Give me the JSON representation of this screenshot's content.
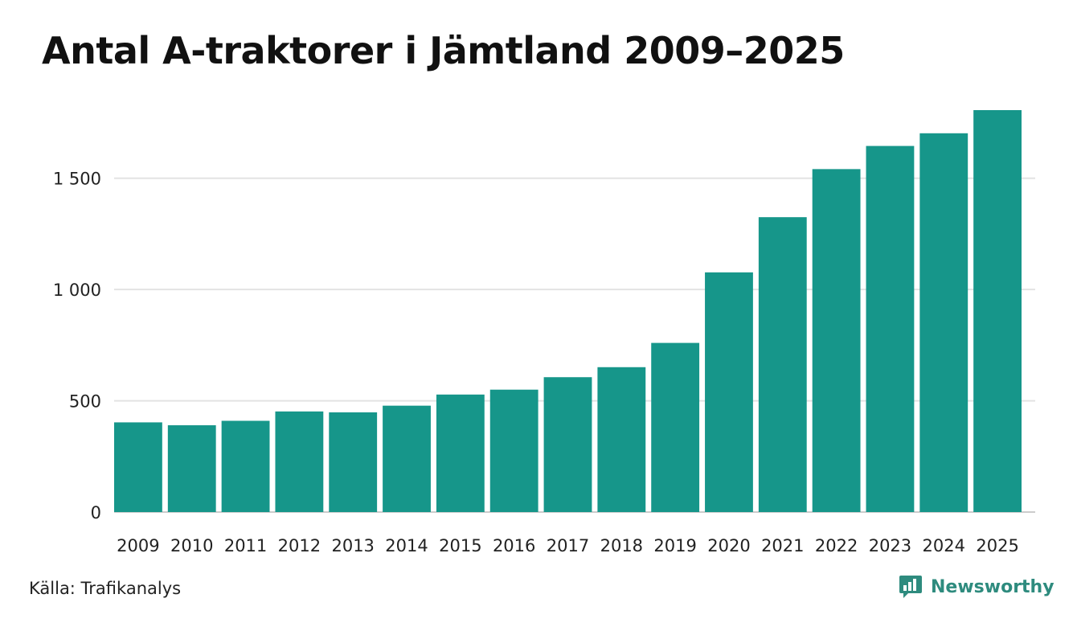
{
  "chart_data": {
    "type": "bar",
    "title": "Antal A-traktorer i Jämtland 2009–2025",
    "categories": [
      "2009",
      "2010",
      "2011",
      "2012",
      "2013",
      "2014",
      "2015",
      "2016",
      "2017",
      "2018",
      "2019",
      "2020",
      "2021",
      "2022",
      "2023",
      "2024",
      "2025"
    ],
    "values": [
      403,
      390,
      410,
      452,
      448,
      478,
      528,
      550,
      606,
      651,
      760,
      1077,
      1325,
      1541,
      1645,
      1702,
      1806
    ],
    "xlabel": "",
    "ylabel": "",
    "ylim": [
      0,
      1806
    ],
    "yticks": [
      0,
      500,
      1000,
      1500
    ],
    "ytick_labels": [
      "0",
      "500",
      "1 000",
      "1 500"
    ],
    "grid": true,
    "bar_color": "#16968a"
  },
  "source": "Källa: Trafikanalys",
  "brand": {
    "name": "Newsworthy",
    "color": "#2e8b7e"
  }
}
